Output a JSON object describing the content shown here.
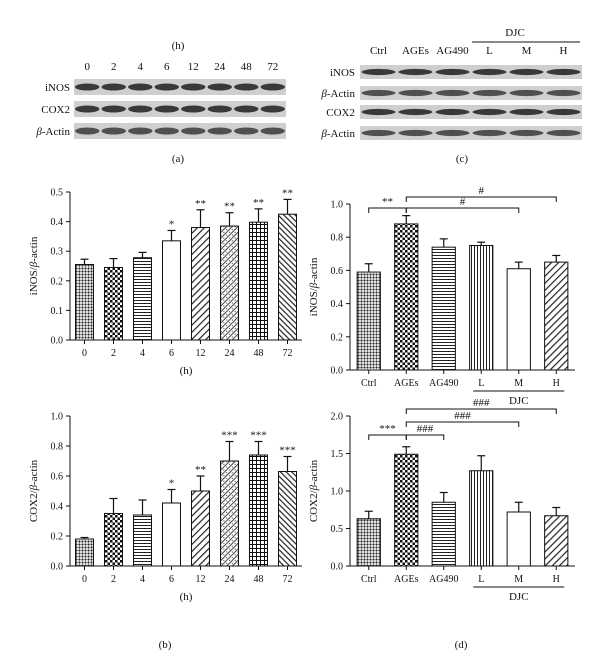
{
  "panel_letters": [
    "(a)",
    "(b)",
    "(c)",
    "(d)"
  ],
  "blot_a": {
    "unit": "(h)",
    "lanes": [
      "0",
      "2",
      "4",
      "6",
      "12",
      "24",
      "48",
      "72"
    ],
    "rows": [
      {
        "label": "iNOS",
        "italic_prefix": ""
      },
      {
        "label": "COX2",
        "italic_prefix": ""
      },
      {
        "label": "-Actin",
        "italic_prefix": "β"
      }
    ]
  },
  "blot_c": {
    "lanes": [
      "Ctrl",
      "AGEs",
      "AG490",
      "L",
      "M",
      "H"
    ],
    "group_label": "DJC",
    "rows": [
      {
        "label": "iNOS",
        "italic_prefix": ""
      },
      {
        "label": "-Actin",
        "italic_prefix": "β"
      },
      {
        "label": "COX2",
        "italic_prefix": ""
      },
      {
        "label": "-Actin",
        "italic_prefix": "β"
      }
    ]
  },
  "chart_data": [
    {
      "id": "b-inos",
      "type": "bar",
      "categories": [
        "0",
        "2",
        "4",
        "6",
        "12",
        "24",
        "48",
        "72"
      ],
      "values": [
        0.255,
        0.245,
        0.278,
        0.335,
        0.38,
        0.385,
        0.398,
        0.425
      ],
      "errors": [
        0.018,
        0.03,
        0.018,
        0.035,
        0.06,
        0.045,
        0.045,
        0.05
      ],
      "sig": [
        "",
        "",
        "",
        "*",
        "**",
        "**",
        "**",
        "**"
      ],
      "xlabel": "(h)",
      "ylabel_prefix": "iNOS/",
      "ylabel_italic": "β",
      "ylabel_suffix": "-actin",
      "ylim": [
        0,
        0.5
      ],
      "yticks": [
        "0.0",
        "0.1",
        "0.2",
        "0.3",
        "0.4",
        "0.5"
      ],
      "patterns": [
        "dots",
        "checker",
        "hlines",
        "white",
        "diag",
        "diagdot",
        "grid",
        "diag2"
      ]
    },
    {
      "id": "b-cox2",
      "type": "bar",
      "categories": [
        "0",
        "2",
        "4",
        "6",
        "12",
        "24",
        "48",
        "72"
      ],
      "values": [
        0.18,
        0.35,
        0.34,
        0.42,
        0.5,
        0.7,
        0.74,
        0.63
      ],
      "errors": [
        0.01,
        0.1,
        0.1,
        0.09,
        0.1,
        0.13,
        0.09,
        0.1
      ],
      "sig": [
        "",
        "",
        "",
        "*",
        "**",
        "***",
        "***",
        "***"
      ],
      "xlabel": "(h)",
      "ylabel_prefix": "COX2/",
      "ylabel_italic": "β",
      "ylabel_suffix": "-actin",
      "ylim": [
        0,
        1.0
      ],
      "yticks": [
        "0.0",
        "0.2",
        "0.4",
        "0.6",
        "0.8",
        "1.0"
      ],
      "patterns": [
        "dots",
        "checker",
        "hlines",
        "white",
        "diag",
        "diagdot",
        "grid",
        "diag2"
      ]
    },
    {
      "id": "d-inos",
      "type": "bar",
      "categories": [
        "Ctrl",
        "AGEs",
        "AG490",
        "L",
        "M",
        "H"
      ],
      "values": [
        0.59,
        0.88,
        0.74,
        0.75,
        0.61,
        0.65
      ],
      "errors": [
        0.05,
        0.05,
        0.05,
        0.02,
        0.04,
        0.04
      ],
      "group_label": "DJC",
      "ylabel_prefix": "iNOS/",
      "ylabel_italic": "β",
      "ylabel_suffix": "-actin",
      "ylim": [
        0,
        1.0
      ],
      "yticks": [
        "0.0",
        "0.2",
        "0.4",
        "0.6",
        "0.8",
        "1.0"
      ],
      "patterns": [
        "dots",
        "checker",
        "hlines",
        "vlines",
        "white",
        "diag"
      ],
      "brackets": [
        {
          "from": 0,
          "to": 1,
          "label": "**",
          "level": 0
        },
        {
          "from": 1,
          "to": 5,
          "label": "#",
          "level": 1
        },
        {
          "from": 1,
          "to": 4,
          "label": "#",
          "level": 0
        }
      ]
    },
    {
      "id": "d-cox2",
      "type": "bar",
      "categories": [
        "Ctrl",
        "AGEs",
        "AG490",
        "L",
        "M",
        "H"
      ],
      "values": [
        0.63,
        1.49,
        0.85,
        1.27,
        0.72,
        0.67
      ],
      "errors": [
        0.1,
        0.1,
        0.13,
        0.2,
        0.13,
        0.11
      ],
      "group_label": "DJC",
      "ylabel_prefix": "COX2/",
      "ylabel_italic": "β",
      "ylabel_suffix": "-actin",
      "ylim": [
        0,
        2.0
      ],
      "yticks": [
        "0.0",
        "0.5",
        "1.0",
        "1.5",
        "2.0"
      ],
      "patterns": [
        "dots",
        "checker",
        "hlines",
        "vlines",
        "white",
        "diag"
      ],
      "brackets": [
        {
          "from": 0,
          "to": 1,
          "label": "***",
          "level": 0
        },
        {
          "from": 1,
          "to": 2,
          "label": "###",
          "level": 0
        },
        {
          "from": 1,
          "to": 4,
          "label": "###",
          "level": 1
        },
        {
          "from": 1,
          "to": 5,
          "label": "###",
          "level": 2
        }
      ]
    }
  ]
}
